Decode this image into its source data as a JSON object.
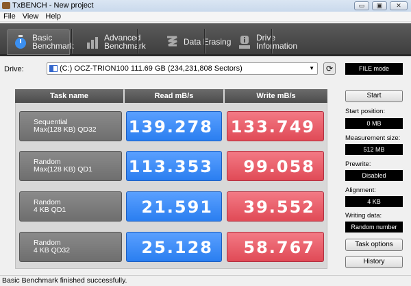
{
  "window": {
    "title": "TxBENCH - New project",
    "minimize": "▭",
    "maximize": "▣",
    "close": "✕"
  },
  "menu": [
    "File",
    "View",
    "Help"
  ],
  "tabs": [
    {
      "line1": "Basic",
      "line2": "Benchmark",
      "active": true
    },
    {
      "line1": "Advanced",
      "line2": "Benchmark"
    },
    {
      "line1": "Data Erasing",
      "line2": ""
    },
    {
      "line1": "Drive",
      "line2": "Information"
    }
  ],
  "drive": {
    "label": "Drive:",
    "value": "(C:) OCZ-TRION100  111.69 GB (234,231,808 Sectors)",
    "mode": "FILE mode"
  },
  "table": {
    "headers": [
      "Task name",
      "Read mB/s",
      "Write mB/s"
    ],
    "rows": [
      {
        "line1": "Sequential",
        "line2": "Max(128 KB) QD32",
        "read": "139.278",
        "write": "133.749"
      },
      {
        "line1": "Random",
        "line2": "Max(128 KB) QD1",
        "read": "113.353",
        "write": "99.058"
      },
      {
        "line1": "Random",
        "line2": "4 KB QD1",
        "read": "21.591",
        "write": "39.552"
      },
      {
        "line1": "Random",
        "line2": "4 KB QD32",
        "read": "25.128",
        "write": "58.767"
      }
    ]
  },
  "side": {
    "start": "Start",
    "start_position_label": "Start position:",
    "start_position": "0 MB",
    "measurement_size_label": "Measurement size:",
    "measurement_size": "512 MB",
    "prewrite_label": "Prewrite:",
    "prewrite": "Disabled",
    "alignment_label": "Alignment:",
    "alignment": "4 KB",
    "writing_data_label": "Writing data:",
    "writing_data": "Random number",
    "task_options": "Task options",
    "history": "History"
  },
  "status": "Basic Benchmark finished successfully.",
  "colors": {
    "read": "#2a7ef0",
    "write": "#e04a56",
    "toolbar": "#4a4a4a"
  }
}
